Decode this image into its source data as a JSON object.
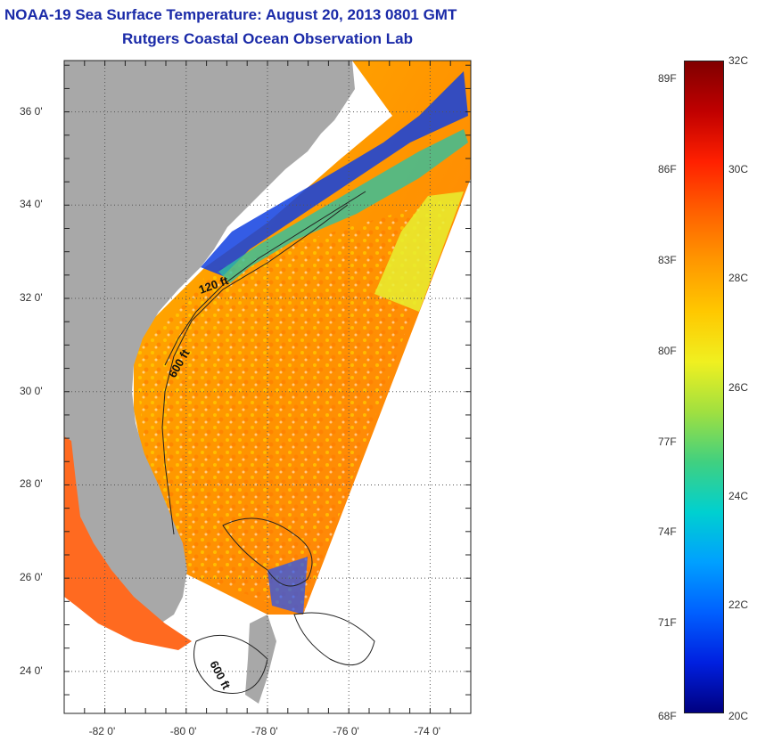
{
  "title": "NOAA-19 Sea Surface Temperature:  August 20, 2013 0801 GMT",
  "subtitle": "Rutgers Coastal Ocean Observation Lab",
  "lat_ticks": [
    {
      "value": 36,
      "label": "36 0'"
    },
    {
      "value": 34,
      "label": "34 0'"
    },
    {
      "value": 32,
      "label": "32 0'"
    },
    {
      "value": 30,
      "label": "30 0'"
    },
    {
      "value": 28,
      "label": "28 0'"
    },
    {
      "value": 26,
      "label": "26 0'"
    },
    {
      "value": 24,
      "label": "24 0'"
    }
  ],
  "lon_ticks": [
    {
      "value": -82,
      "label": "-82 0'"
    },
    {
      "value": -80,
      "label": "-80 0'"
    },
    {
      "value": -78,
      "label": "-78 0'"
    },
    {
      "value": -76,
      "label": "-76 0'"
    },
    {
      "value": -74,
      "label": "-74 0'"
    }
  ],
  "contours": [
    {
      "label": "120 ft"
    },
    {
      "label": "600 ft"
    },
    {
      "label": "600 ft"
    }
  ],
  "colorbar": {
    "fahrenheit": [
      "89F",
      "86F",
      "83F",
      "80F",
      "77F",
      "74F",
      "71F",
      "68F"
    ],
    "celsius": [
      "32C",
      "30C",
      "28C",
      "26C",
      "24C",
      "22C",
      "20C"
    ],
    "colors": [
      "#800000",
      "#c00000",
      "#ff2000",
      "#ff6000",
      "#ff9800",
      "#ffc800",
      "#f0f020",
      "#a0e040",
      "#40d080",
      "#00d0d0",
      "#00a0ff",
      "#0060ff",
      "#0020e0",
      "#000080"
    ]
  },
  "colors": {
    "land": "#a8a8a8",
    "title": "#1a2aa8"
  }
}
